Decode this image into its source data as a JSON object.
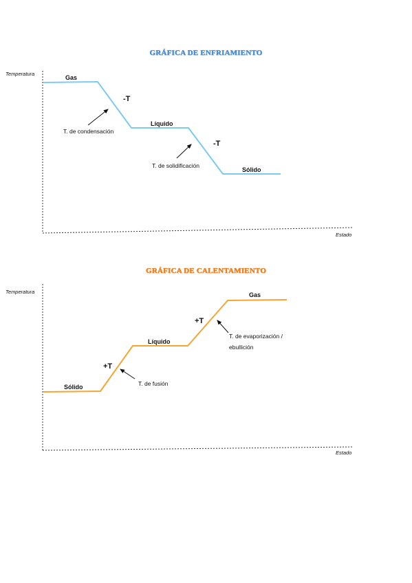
{
  "cooling": {
    "title": "GRÁFICA DE ENFRIAMIENTO",
    "color": "#7ccbef",
    "y_axis_label": "Temperatura",
    "x_axis_label": "Estado",
    "phases": {
      "gas": "Gas",
      "liquid": "Líquido",
      "solid": "Sólido"
    },
    "transitions": {
      "condensation": "T. de condensación",
      "solidification": "T. de solidificación"
    },
    "temp_signs": {
      "first": "-T",
      "second": "-T"
    }
  },
  "heating": {
    "title": "GRÁFICA DE CALENTAMIENTO",
    "color": "#f5a531",
    "y_axis_label": "Temperatura",
    "x_axis_label": "Estado",
    "phases": {
      "solid": "Sólido",
      "liquid": "Líquido",
      "gas": "Gas"
    },
    "transitions": {
      "fusion": "T. de fusión",
      "evaporation_line1": "T. de evaporización /",
      "evaporation_line2": "ebullición"
    },
    "temp_signs": {
      "first": "+T",
      "second": "+T"
    }
  }
}
